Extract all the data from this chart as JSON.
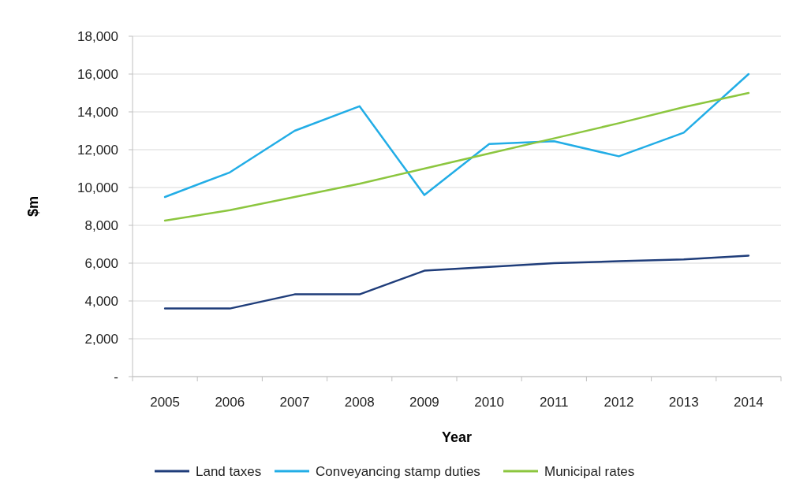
{
  "chart_data": {
    "type": "line",
    "xlabel": "Year",
    "ylabel": "$m",
    "categories": [
      "2005",
      "2006",
      "2007",
      "2008",
      "2009",
      "2010",
      "2011",
      "2012",
      "2013",
      "2014"
    ],
    "series": [
      {
        "name": "Land taxes",
        "color": "#1f3d7a",
        "values": [
          3600,
          3600,
          4350,
          4350,
          5600,
          5800,
          6000,
          6100,
          6200,
          6400
        ]
      },
      {
        "name": "Conveyancing stamp duties",
        "color": "#22ade6",
        "values": [
          9500,
          10800,
          13000,
          14300,
          9600,
          12300,
          12450,
          11650,
          12900,
          16000
        ]
      },
      {
        "name": "Municipal rates",
        "color": "#8cc63f",
        "values": [
          8250,
          8800,
          9500,
          10200,
          11000,
          11800,
          12600,
          13400,
          14250,
          15000
        ]
      }
    ],
    "ylim": [
      0,
      18000
    ],
    "yticks": [
      {
        "value": 0,
        "label": "-"
      },
      {
        "value": 2000,
        "label": "2,000"
      },
      {
        "value": 4000,
        "label": "4,000"
      },
      {
        "value": 6000,
        "label": "6,000"
      },
      {
        "value": 8000,
        "label": "8,000"
      },
      {
        "value": 10000,
        "label": "10,000"
      },
      {
        "value": 12000,
        "label": "12,000"
      },
      {
        "value": 14000,
        "label": "14,000"
      },
      {
        "value": 16000,
        "label": "16,000"
      },
      {
        "value": 18000,
        "label": "18,000"
      }
    ],
    "grid": "y",
    "legend": "bottom",
    "marker": "none",
    "line_style": "solid"
  }
}
